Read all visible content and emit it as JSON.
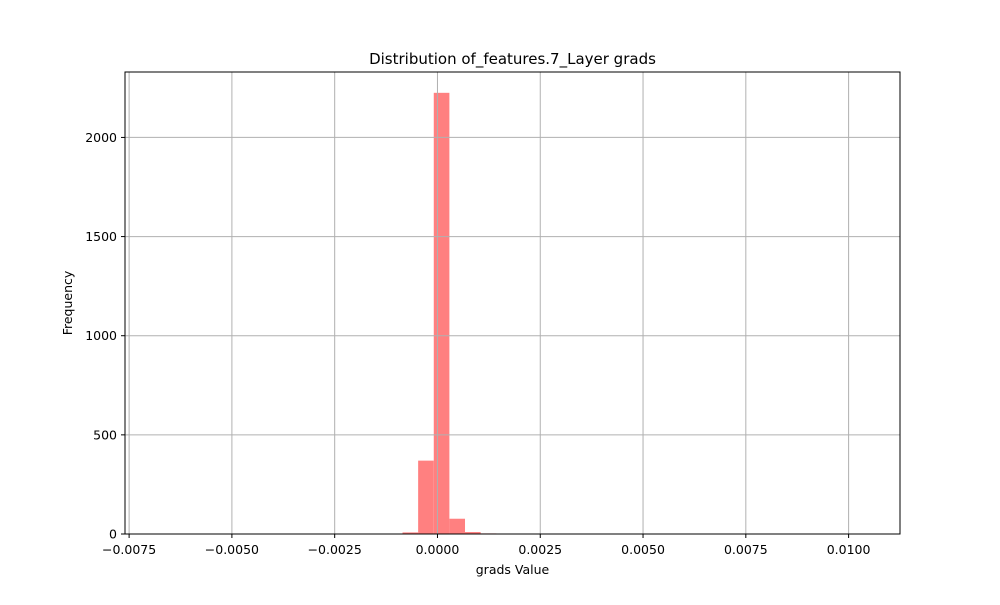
{
  "chart_data": {
    "type": "bar",
    "title": "Distribution of_features.7_Layer grads",
    "xlabel": "grads Value",
    "ylabel": "Frequency",
    "xlim": [
      -0.0076,
      0.01125
    ],
    "ylim": [
      0,
      2330
    ],
    "xticks": [
      -0.0075,
      -0.005,
      -0.0025,
      0.0,
      0.0025,
      0.005,
      0.0075,
      0.01
    ],
    "xtick_labels": [
      "−0.0075",
      "−0.0050",
      "−0.0025",
      "0.0000",
      "0.0025",
      "0.0050",
      "0.0075",
      "0.0100"
    ],
    "yticks": [
      0,
      500,
      1000,
      1500,
      2000
    ],
    "ytick_labels": [
      "0",
      "500",
      "1000",
      "1500",
      "2000"
    ],
    "grid": true,
    "bar_color": "#ff8080",
    "grid_color": "#b0b0b0",
    "bins": [
      {
        "x0": -0.00085,
        "x1": -0.00047,
        "value": 8
      },
      {
        "x0": -0.00047,
        "x1": -9e-05,
        "value": 370
      },
      {
        "x0": -9e-05,
        "x1": 0.00029,
        "value": 2225
      },
      {
        "x0": 0.00029,
        "x1": 0.00067,
        "value": 77
      },
      {
        "x0": 0.00067,
        "x1": 0.00105,
        "value": 10
      },
      {
        "x0": 0.00105,
        "x1": 0.00143,
        "value": 3
      },
      {
        "x0": 0.00143,
        "x1": 0.00181,
        "value": 1
      }
    ]
  }
}
